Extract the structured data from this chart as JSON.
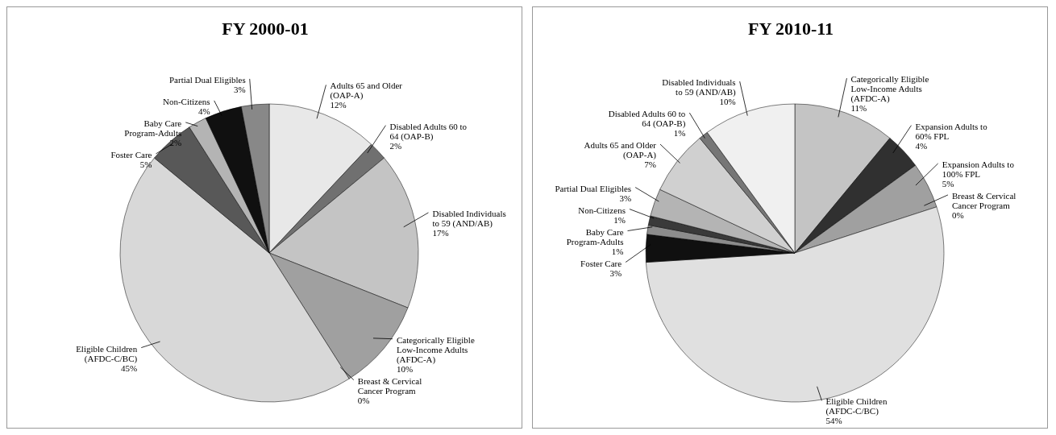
{
  "chart_data": [
    {
      "type": "pie",
      "title": "FY 2000-01",
      "categories": [
        "Adults 65 and Older (OAP-A)",
        "Disabled Adults 60 to 64 (OAP-B)",
        "Disabled Individuals to 59 (AND/AB)",
        "Categorically Eligible Low-Income Adults (AFDC-A)",
        "Breast & Cervical Cancer Program",
        "Eligible  Children (AFDC-C/BC)",
        "Foster Care",
        "Baby Care Program-Adults",
        "Non-Citizens",
        "Partial Dual Eligibles"
      ],
      "values": [
        12,
        2,
        17,
        10,
        0,
        45,
        5,
        2,
        4,
        3
      ],
      "value_labels": [
        "12%",
        "2%",
        "17%",
        "10%",
        "0%",
        "45%",
        "5%",
        "2%",
        "4%",
        "3%"
      ],
      "colors": [
        "#e8e8e8",
        "#707070",
        "#c4c4c4",
        "#a0a0a0",
        "#303030",
        "#d8d8d8",
        "#585858",
        "#b4b4b4",
        "#101010",
        "#888888"
      ],
      "legend": false
    },
    {
      "type": "pie",
      "title": "FY 2010-11",
      "categories": [
        "Categorically Eligible Low-Income Adults (AFDC-A)",
        "Expansion Adults to 60% FPL",
        "Expansion Adults to 100% FPL",
        "Breast & Cervical Cancer Program",
        "Eligible  Children (AFDC-C/BC)",
        "Foster Care",
        "Baby Care Program-Adults",
        "Non-Citizens",
        "Partial Dual Eligibles",
        "Adults 65 and Older (OAP-A)",
        "Disabled Adults 60 to 64 (OAP-B)",
        "Disabled Individuals to 59 (AND/AB)"
      ],
      "values": [
        11,
        4,
        5,
        0,
        54,
        3,
        1,
        1,
        3,
        7,
        1,
        10
      ],
      "value_labels": [
        "11%",
        "4%",
        "5%",
        "0%",
        "54%",
        "3%",
        "1%",
        "1%",
        "3%",
        "7%",
        "1%",
        "10%"
      ],
      "colors": [
        "#c4c4c4",
        "#303030",
        "#a0a0a0",
        "#5c5c5c",
        "#e0e0e0",
        "#101010",
        "#8c8c8c",
        "#3a3a3a",
        "#b4b4b4",
        "#d0d0d0",
        "#767676",
        "#f0f0f0"
      ],
      "legend": false
    }
  ]
}
